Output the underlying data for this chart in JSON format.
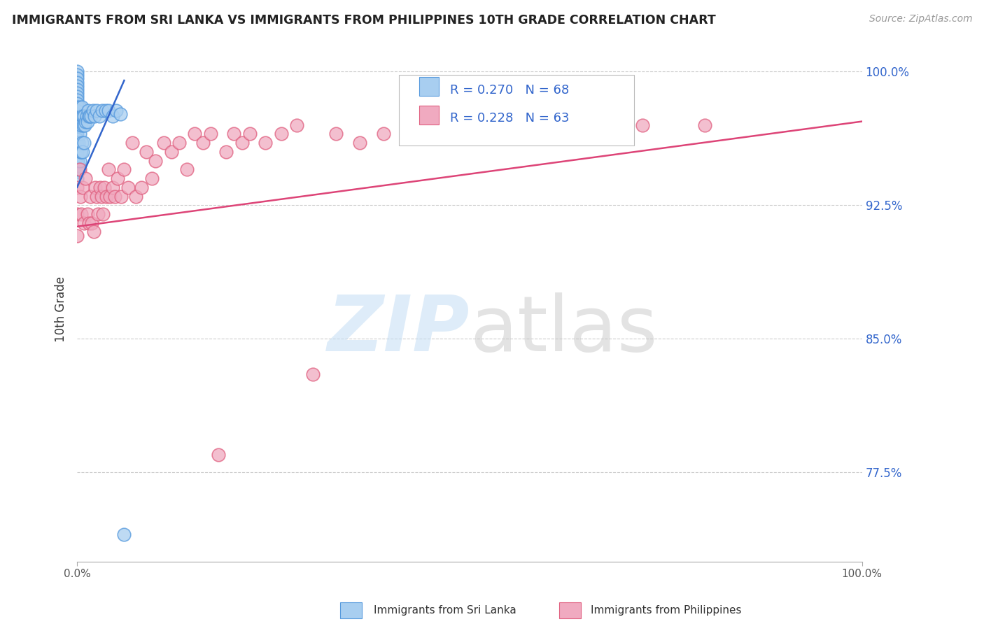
{
  "title": "IMMIGRANTS FROM SRI LANKA VS IMMIGRANTS FROM PHILIPPINES 10TH GRADE CORRELATION CHART",
  "source": "Source: ZipAtlas.com",
  "ylabel": "10th Grade",
  "legend_r1": "R = 0.270",
  "legend_n1": "N = 68",
  "legend_r2": "R = 0.228",
  "legend_n2": "N = 63",
  "color_sri_lanka_fill": "#a8cef0",
  "color_sri_lanka_edge": "#5599dd",
  "color_philippines_fill": "#f0aac0",
  "color_philippines_edge": "#e06080",
  "color_sri_lanka_trend": "#3366cc",
  "color_philippines_trend": "#dd4477",
  "color_legend_text": "#3366cc",
  "color_ytick": "#3366cc",
  "color_grid": "#cccccc",
  "color_title": "#222222",
  "color_source": "#999999",
  "xlim": [
    0.0,
    1.0
  ],
  "ylim": [
    0.725,
    1.008
  ],
  "y_ticks": [
    0.775,
    0.85,
    0.925,
    1.0
  ],
  "y_tick_labels": [
    "77.5%",
    "85.0%",
    "92.5%",
    "100.0%"
  ],
  "sri_lanka_x": [
    0.0,
    0.0,
    0.0,
    0.0,
    0.0,
    0.0,
    0.0,
    0.0,
    0.0,
    0.0,
    0.0,
    0.0,
    0.0,
    0.0,
    0.0,
    0.0,
    0.0,
    0.0,
    0.0,
    0.0,
    0.0,
    0.0,
    0.0,
    0.0,
    0.0,
    0.0,
    0.0,
    0.0,
    0.0,
    0.0,
    0.001,
    0.001,
    0.002,
    0.002,
    0.002,
    0.003,
    0.003,
    0.003,
    0.004,
    0.004,
    0.005,
    0.005,
    0.006,
    0.006,
    0.007,
    0.007,
    0.008,
    0.009,
    0.009,
    0.01,
    0.011,
    0.012,
    0.013,
    0.014,
    0.015,
    0.016,
    0.018,
    0.02,
    0.022,
    0.025,
    0.028,
    0.032,
    0.036,
    0.04,
    0.045,
    0.05,
    0.055,
    0.06
  ],
  "sri_lanka_y": [
    1.0,
    0.998,
    0.996,
    0.994,
    0.992,
    0.99,
    0.988,
    0.986,
    0.984,
    0.982,
    0.98,
    0.978,
    0.976,
    0.974,
    0.972,
    0.97,
    0.968,
    0.966,
    0.964,
    0.962,
    0.96,
    0.958,
    0.956,
    0.954,
    0.952,
    0.95,
    0.948,
    0.946,
    0.944,
    0.94,
    0.97,
    0.95,
    0.975,
    0.96,
    0.945,
    0.98,
    0.965,
    0.95,
    0.975,
    0.955,
    0.97,
    0.955,
    0.98,
    0.96,
    0.975,
    0.955,
    0.97,
    0.975,
    0.96,
    0.97,
    0.972,
    0.975,
    0.972,
    0.978,
    0.975,
    0.975,
    0.975,
    0.978,
    0.975,
    0.978,
    0.975,
    0.978,
    0.978,
    0.978,
    0.975,
    0.978,
    0.976,
    0.74
  ],
  "philippines_x": [
    0.0,
    0.0,
    0.0,
    0.003,
    0.004,
    0.005,
    0.007,
    0.009,
    0.011,
    0.013,
    0.015,
    0.017,
    0.019,
    0.021,
    0.023,
    0.025,
    0.027,
    0.029,
    0.031,
    0.033,
    0.035,
    0.037,
    0.04,
    0.042,
    0.045,
    0.048,
    0.052,
    0.056,
    0.06,
    0.065,
    0.07,
    0.075,
    0.082,
    0.088,
    0.095,
    0.1,
    0.11,
    0.12,
    0.13,
    0.14,
    0.15,
    0.16,
    0.17,
    0.18,
    0.19,
    0.2,
    0.21,
    0.22,
    0.24,
    0.26,
    0.28,
    0.3,
    0.33,
    0.36,
    0.39,
    0.42,
    0.46,
    0.5,
    0.55,
    0.6,
    0.66,
    0.72,
    0.8
  ],
  "philippines_y": [
    0.935,
    0.92,
    0.908,
    0.945,
    0.93,
    0.92,
    0.935,
    0.915,
    0.94,
    0.92,
    0.915,
    0.93,
    0.915,
    0.91,
    0.935,
    0.93,
    0.92,
    0.935,
    0.93,
    0.92,
    0.935,
    0.93,
    0.945,
    0.93,
    0.935,
    0.93,
    0.94,
    0.93,
    0.945,
    0.935,
    0.96,
    0.93,
    0.935,
    0.955,
    0.94,
    0.95,
    0.96,
    0.955,
    0.96,
    0.945,
    0.965,
    0.96,
    0.965,
    0.785,
    0.955,
    0.965,
    0.96,
    0.965,
    0.96,
    0.965,
    0.97,
    0.83,
    0.965,
    0.96,
    0.965,
    0.965,
    0.965,
    0.97,
    0.965,
    0.97,
    0.965,
    0.97,
    0.97
  ],
  "sri_lanka_trend_x": [
    0.0,
    0.06
  ],
  "sri_lanka_trend_y": [
    0.935,
    0.995
  ],
  "phil_trend_x": [
    0.0,
    1.0
  ],
  "phil_trend_y": [
    0.913,
    0.972
  ]
}
